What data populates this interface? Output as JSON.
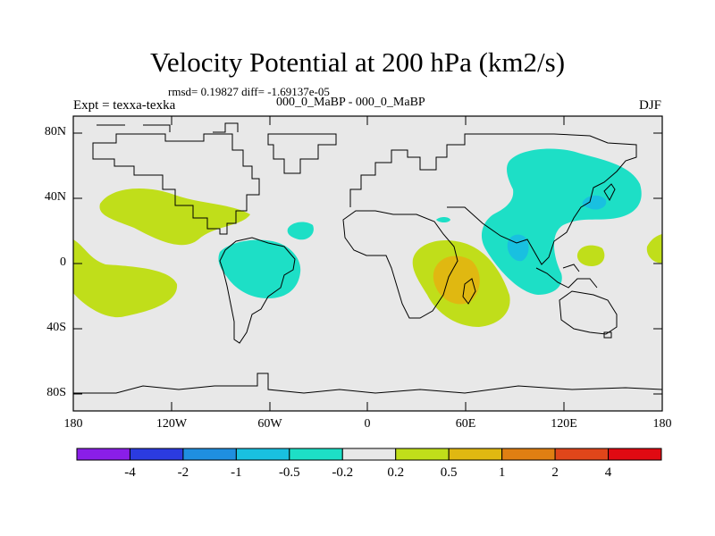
{
  "title": "Velocity Potential at 200 hPa (km2/s)",
  "stats": "rmsd= 0.19827 diff= -1.69137e-05",
  "left_label": "Expt = texxa-texka",
  "center_label": "000_0_MaBP - 000_0_MaBP",
  "right_label": "DJF",
  "lat_labels": [
    "80N",
    "40N",
    "0",
    "40S",
    "80S"
  ],
  "lon_labels": [
    "180",
    "120W",
    "60W",
    "0",
    "60E",
    "120E",
    "180"
  ],
  "colorbar": {
    "colors": [
      "#8a1ee8",
      "#2b3be0",
      "#1f8fe0",
      "#19c0e0",
      "#1ddfc6",
      "#e8e8e8",
      "#c0de1a",
      "#e0b811",
      "#e07f12",
      "#e0461a",
      "#e00a12"
    ],
    "labels": [
      "-4",
      "-2",
      "-1",
      "-0.5",
      "-0.2",
      "0.2",
      "0.5",
      "1",
      "2",
      "4"
    ]
  },
  "colors": {
    "background": "#e8e8e8",
    "positive_weak": "#c0de1a",
    "positive_mid": "#e0b811",
    "negative_weak": "#1ddfc6",
    "negative_mid": "#19c0e0"
  }
}
